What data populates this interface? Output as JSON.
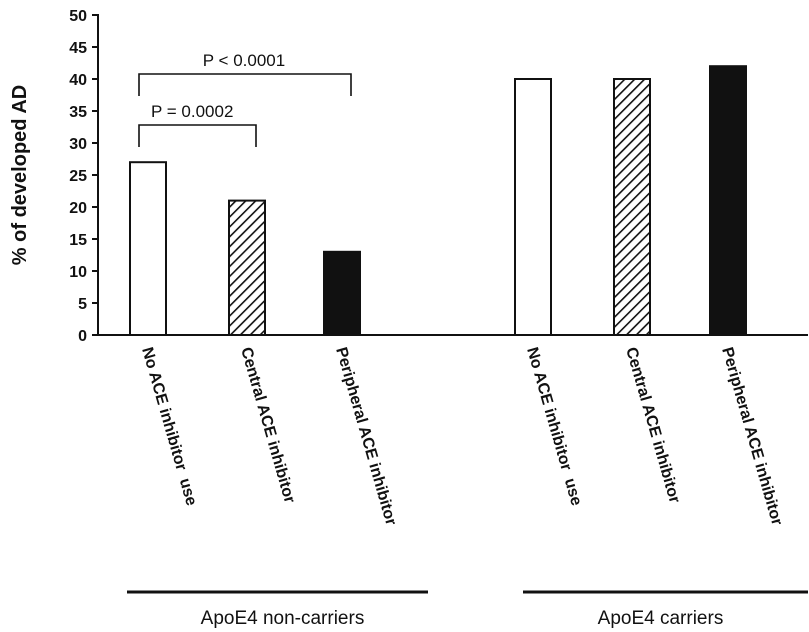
{
  "chart_data": {
    "type": "bar",
    "ylabel": "% of developed AD",
    "ylim": [
      0,
      50
    ],
    "yticks": [
      0,
      5,
      10,
      15,
      20,
      25,
      30,
      35,
      40,
      45,
      50
    ],
    "grid": false,
    "groups": [
      {
        "label": "ApoE4 non-carriers",
        "bars": [
          {
            "category": "No ACE inhibitor  use",
            "value": 27,
            "fill": "white"
          },
          {
            "category": "Central ACE inhibitor",
            "value": 21,
            "fill": "hatched"
          },
          {
            "category": "Peripheral ACE inhibitor",
            "value": 13,
            "fill": "black"
          }
        ]
      },
      {
        "label": "ApoE4 carriers",
        "bars": [
          {
            "category": "No ACE inhibitor  use",
            "value": 40,
            "fill": "white"
          },
          {
            "category": "Central ACE inhibitor",
            "value": 40,
            "fill": "hatched"
          },
          {
            "category": "Peripheral ACE inhibitor",
            "value": 42,
            "fill": "black"
          }
        ]
      }
    ],
    "annotations": [
      {
        "text": "P < 0.0001",
        "from": [
          0,
          0
        ],
        "to": [
          0,
          2
        ]
      },
      {
        "text": "P = 0.0002",
        "from": [
          0,
          0
        ],
        "to": [
          0,
          1
        ]
      }
    ]
  }
}
